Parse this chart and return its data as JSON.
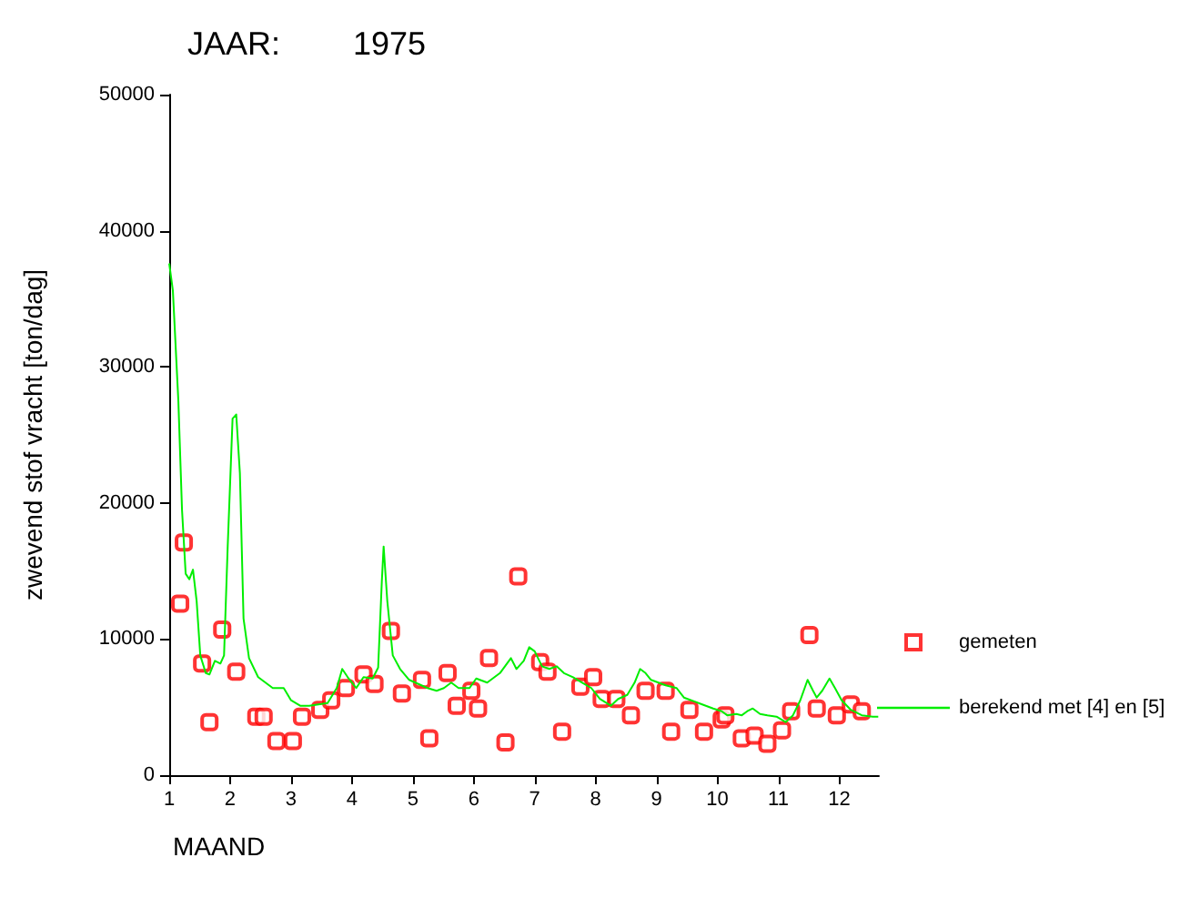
{
  "chart_data": {
    "type": "scatter",
    "title": "JAAR:        1975",
    "xlabel": "MAAND",
    "ylabel": "zwevend stof vracht [ton/dag]",
    "xlim": [
      1,
      12.65
    ],
    "xticks": [
      1,
      2,
      3,
      4,
      5,
      6,
      7,
      8,
      9,
      10,
      11,
      12
    ],
    "ylim": [
      0,
      50000
    ],
    "yticks": [
      0,
      10000,
      20000,
      30000,
      40000,
      50000
    ],
    "grid": false,
    "legend": "right",
    "series": [
      {
        "name": "gemeten",
        "marker": "square",
        "color": "#ff0000",
        "x": [
          1.18,
          1.24,
          1.54,
          1.66,
          1.87,
          2.1,
          2.43,
          2.55,
          2.76,
          3.03,
          3.18,
          3.48,
          3.66,
          3.9,
          4.19,
          4.37,
          4.64,
          4.82,
          5.15,
          5.27,
          5.57,
          5.72,
          5.96,
          6.07,
          6.25,
          6.52,
          6.73,
          7.09,
          7.21,
          7.45,
          7.75,
          7.96,
          8.1,
          8.34,
          8.58,
          8.82,
          9.15,
          9.24,
          9.54,
          9.78,
          10.07,
          10.13,
          10.4,
          10.61,
          10.82,
          11.06,
          11.21,
          11.51,
          11.63,
          11.96,
          12.19,
          12.37
        ],
        "values": [
          12600,
          17100,
          8200,
          3900,
          10700,
          7600,
          4300,
          4300,
          2500,
          2500,
          4300,
          4800,
          5500,
          6400,
          7400,
          6700,
          10600,
          6000,
          7000,
          2700,
          7500,
          5100,
          6200,
          4900,
          8600,
          2400,
          14600,
          8300,
          7600,
          3200,
          6500,
          7200,
          5600,
          5600,
          4400,
          6200,
          6200,
          3200,
          4800,
          3200,
          4100,
          4400,
          2700,
          2900,
          2300,
          3300,
          4700,
          10300,
          4900,
          4400,
          5200,
          4700
        ]
      },
      {
        "name": "berekend met [4] en [5]",
        "type": "line",
        "marker": "none",
        "line_style": "solid",
        "color": "#00ee00",
        "x": [
          1.0,
          1.06,
          1.15,
          1.21,
          1.27,
          1.33,
          1.39,
          1.45,
          1.51,
          1.6,
          1.66,
          1.75,
          1.84,
          1.9,
          1.96,
          2.04,
          2.1,
          2.16,
          2.22,
          2.31,
          2.46,
          2.7,
          2.88,
          3.0,
          3.15,
          3.3,
          3.6,
          3.75,
          3.84,
          3.93,
          4.07,
          4.19,
          4.34,
          4.43,
          4.49,
          4.52,
          4.58,
          4.67,
          4.79,
          4.94,
          5.24,
          5.39,
          5.51,
          5.63,
          5.75,
          5.93,
          6.04,
          6.22,
          6.43,
          6.61,
          6.7,
          6.82,
          6.91,
          7.0,
          7.12,
          7.24,
          7.36,
          7.48,
          7.63,
          7.78,
          7.93,
          8.07,
          8.25,
          8.37,
          8.52,
          8.64,
          8.73,
          8.82,
          8.91,
          9.03,
          9.15,
          9.33,
          9.45,
          9.57,
          9.75,
          9.93,
          10.07,
          10.16,
          10.31,
          10.4,
          10.49,
          10.58,
          10.7,
          10.82,
          10.97,
          11.12,
          11.24,
          11.36,
          11.48,
          11.57,
          11.63,
          11.72,
          11.84,
          11.93,
          12.04,
          12.19,
          12.37,
          12.55,
          12.64
        ],
        "values": [
          37600,
          35600,
          27500,
          19500,
          14800,
          14400,
          15100,
          12800,
          8800,
          7500,
          7400,
          8400,
          8200,
          8800,
          16800,
          26200,
          26500,
          22200,
          11500,
          8600,
          7200,
          6400,
          6400,
          5500,
          5100,
          5100,
          5300,
          6400,
          7800,
          7200,
          6400,
          7200,
          7100,
          7900,
          14200,
          16800,
          12800,
          8800,
          7800,
          7000,
          6400,
          6200,
          6400,
          6800,
          6400,
          6400,
          7100,
          6800,
          7500,
          8600,
          7800,
          8400,
          9400,
          9100,
          8000,
          7800,
          8000,
          7500,
          7200,
          6800,
          6400,
          5600,
          5100,
          5600,
          5900,
          6800,
          7800,
          7500,
          7000,
          6800,
          6600,
          6400,
          5700,
          5500,
          5200,
          4900,
          4700,
          4400,
          4500,
          4400,
          4700,
          4900,
          4500,
          4400,
          4300,
          3900,
          4400,
          5500,
          7000,
          6200,
          5700,
          6200,
          7100,
          6400,
          5500,
          4800,
          4400,
          4300,
          4300
        ]
      }
    ]
  }
}
